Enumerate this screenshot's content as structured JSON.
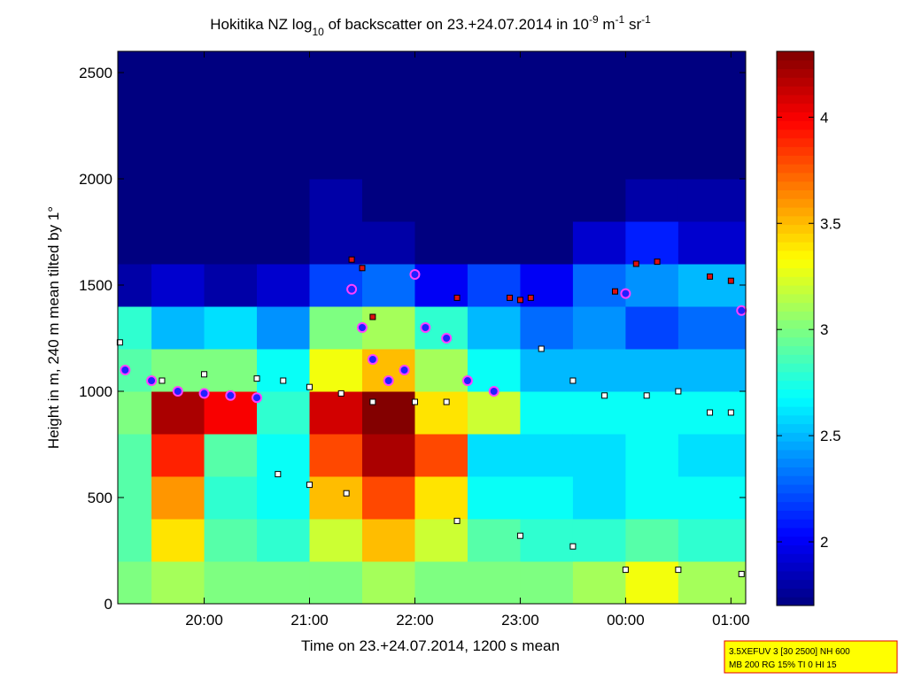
{
  "chart_data": {
    "type": "heatmap",
    "title": [
      {
        "text": "Hokitika NZ log"
      },
      {
        "text": "10",
        "script": "sub"
      },
      {
        "text": " of backscatter on 23.+24.07.2014 in 10"
      },
      {
        "text": "-9",
        "script": "super"
      },
      {
        "text": " m"
      },
      {
        "text": "-1",
        "script": "super"
      },
      {
        "text": " sr"
      },
      {
        "text": "-1",
        "script": "super"
      }
    ],
    "xlabel": "Time on 23.+24.07.2014, 1200 s mean",
    "ylabel": "Height in m, 240 m mean tilted by 1°",
    "xlim": [
      19.18,
      25.14
    ],
    "xticks": [
      {
        "value": 20,
        "label": "20:00"
      },
      {
        "value": 21,
        "label": "21:00"
      },
      {
        "value": 22,
        "label": "22:00"
      },
      {
        "value": 23,
        "label": "23:00"
      },
      {
        "value": 24,
        "label": "00:00"
      },
      {
        "value": 25,
        "label": "01:00"
      }
    ],
    "ylim": [
      0,
      2600
    ],
    "yticks": [
      0,
      500,
      1000,
      1500,
      2000,
      2500
    ],
    "clim": [
      1.7,
      4.31
    ],
    "cticks": [
      2,
      2.5,
      3,
      3.5,
      4
    ],
    "colormap": "jet",
    "x_edges": [
      19.18,
      19.5,
      20,
      20.5,
      21,
      21.5,
      22,
      22.5,
      23,
      23.5,
      24,
      24.5,
      25.14
    ],
    "y_edges": [
      0,
      200,
      400,
      600,
      800,
      1000,
      1200,
      1400,
      1600,
      1800,
      2000,
      2200,
      2400,
      2600
    ],
    "z": [
      [
        3.0,
        2.9,
        2.9,
        2.9,
        3.0,
        2.9,
        2.8,
        1.8,
        1.7,
        1.7,
        1.7,
        1.7,
        1.7
      ],
      [
        3.1,
        3.4,
        3.6,
        3.9,
        4.2,
        3.0,
        2.5,
        1.9,
        1.7,
        1.7,
        1.7,
        1.7,
        1.7
      ],
      [
        3.0,
        2.9,
        2.8,
        2.9,
        4.0,
        3.0,
        2.6,
        1.8,
        1.7,
        1.7,
        1.7,
        1.7,
        1.7
      ],
      [
        3.0,
        2.8,
        2.7,
        2.7,
        2.8,
        2.7,
        2.4,
        1.9,
        1.7,
        1.7,
        1.7,
        1.7,
        1.7
      ],
      [
        3.0,
        3.2,
        3.5,
        3.8,
        4.1,
        3.3,
        3.0,
        2.2,
        1.8,
        1.8,
        1.7,
        1.7,
        1.7
      ],
      [
        3.1,
        3.5,
        3.8,
        4.2,
        4.3,
        3.5,
        3.1,
        2.3,
        1.8,
        1.7,
        1.7,
        1.7,
        1.7
      ],
      [
        3.0,
        3.2,
        3.4,
        3.8,
        3.4,
        3.1,
        2.8,
        2.0,
        1.7,
        1.7,
        1.7,
        1.7,
        1.7
      ],
      [
        3.0,
        2.9,
        2.7,
        2.6,
        3.2,
        2.7,
        2.5,
        2.2,
        1.7,
        1.7,
        1.7,
        1.7,
        1.7
      ],
      [
        3.0,
        2.8,
        2.7,
        2.6,
        2.7,
        2.5,
        2.3,
        2.0,
        1.7,
        1.7,
        1.7,
        1.7,
        1.7
      ],
      [
        3.1,
        2.8,
        2.6,
        2.6,
        2.7,
        2.5,
        2.4,
        2.3,
        1.9,
        1.7,
        1.7,
        1.7,
        1.7
      ],
      [
        3.3,
        2.9,
        2.7,
        2.7,
        2.7,
        2.5,
        2.2,
        2.4,
        2.1,
        1.8,
        1.7,
        1.7,
        1.7
      ],
      [
        3.1,
        2.8,
        2.7,
        2.6,
        2.7,
        2.5,
        2.3,
        2.5,
        1.9,
        1.8,
        1.7,
        1.7,
        1.7
      ]
    ],
    "series": [
      {
        "marker": "square",
        "color": "#ffffff",
        "edge": "#000000",
        "x": [
          19.2,
          19.6,
          20.0,
          20.5,
          20.75,
          21.0,
          21.3,
          21.6,
          22.0,
          22.3,
          20.7,
          21.0,
          21.35,
          22.4,
          23.0,
          23.5,
          24.0,
          24.5,
          25.1,
          23.2,
          23.5,
          23.8,
          24.2,
          24.5,
          24.8,
          25.0
        ],
        "y": [
          1230,
          1050,
          1080,
          1060,
          1050,
          1020,
          990,
          950,
          950,
          950,
          610,
          560,
          520,
          390,
          320,
          270,
          160,
          160,
          140,
          1200,
          1050,
          980,
          980,
          1000,
          900,
          900
        ]
      },
      {
        "marker": "circle",
        "color": "#2020ff",
        "edge": "#ff40ff",
        "x": [
          19.25,
          19.5,
          19.75,
          20.0,
          20.25,
          20.5,
          21.4,
          21.5,
          21.6,
          21.75,
          21.9,
          22.0,
          22.1,
          22.3,
          22.5,
          22.75,
          24.0,
          25.1
        ],
        "y": [
          1100,
          1050,
          1000,
          990,
          980,
          970,
          1480,
          1300,
          1150,
          1050,
          1100,
          1550,
          1300,
          1250,
          1050,
          1000,
          1460,
          1380
        ]
      },
      {
        "marker": "square",
        "color": "#dd1010",
        "edge": "#000000",
        "x": [
          21.4,
          21.5,
          21.6,
          22.4,
          22.9,
          23.0,
          23.1,
          23.9,
          24.1,
          24.3,
          24.8,
          25.0
        ],
        "y": [
          1620,
          1580,
          1350,
          1440,
          1440,
          1430,
          1440,
          1470,
          1600,
          1610,
          1540,
          1520
        ]
      }
    ],
    "note": [
      "3.5XEFUV 3 [30 2500] NH 600",
      "MB 200 RG 15% TI 0 HI 15"
    ]
  }
}
